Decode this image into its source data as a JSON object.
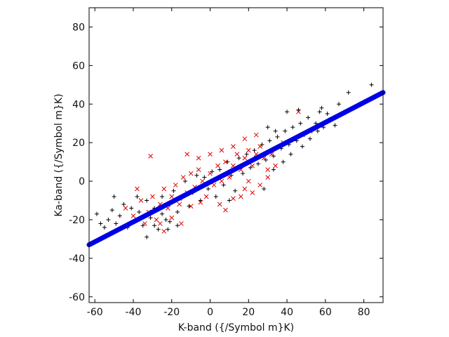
{
  "chart_data": {
    "type": "scatter",
    "title": "",
    "xlabel": "K-band ({/Symbol m}K)",
    "ylabel": "Ka-band ({/Symbol m}K)",
    "xlim": [
      -63,
      90
    ],
    "ylim": [
      -63,
      90
    ],
    "xticks": [
      -60,
      -40,
      -20,
      0,
      20,
      40,
      60,
      80
    ],
    "yticks": [
      -60,
      -40,
      -20,
      0,
      20,
      40,
      60,
      80
    ],
    "grid": false,
    "legend": "none",
    "series": [
      {
        "marker": "plus",
        "color": "#000000",
        "description_points": [
          [
            -59,
            -17
          ],
          [
            -57,
            -22
          ],
          [
            -55,
            -24
          ],
          [
            -53,
            -20
          ],
          [
            -51,
            -15
          ],
          [
            -49,
            -22
          ],
          [
            -47,
            -18
          ],
          [
            -45,
            -12
          ],
          [
            -43,
            -24
          ],
          [
            -41,
            -14
          ],
          [
            -39,
            -20
          ],
          [
            -37,
            -16
          ],
          [
            -35,
            -23
          ],
          [
            -33,
            -10
          ],
          [
            -31,
            -19
          ],
          [
            -29,
            -14
          ],
          [
            -27,
            -25
          ],
          [
            -25,
            -8
          ],
          [
            -23,
            -20
          ],
          [
            -21,
            -12
          ],
          [
            -19,
            -5
          ],
          [
            -17,
            -16
          ],
          [
            -15,
            -9
          ],
          [
            -13,
            0
          ],
          [
            -11,
            -13
          ],
          [
            -9,
            -6
          ],
          [
            -7,
            3
          ],
          [
            -5,
            -10
          ],
          [
            -3,
            2
          ],
          [
            -1,
            -4
          ],
          [
            1,
            5
          ],
          [
            3,
            -8
          ],
          [
            5,
            6
          ],
          [
            7,
            -2
          ],
          [
            9,
            10
          ],
          [
            11,
            3
          ],
          [
            13,
            -5
          ],
          [
            15,
            12
          ],
          [
            17,
            4
          ],
          [
            19,
            14
          ],
          [
            21,
            7
          ],
          [
            23,
            16
          ],
          [
            25,
            9
          ],
          [
            27,
            19
          ],
          [
            29,
            11
          ],
          [
            31,
            21
          ],
          [
            33,
            13
          ],
          [
            35,
            23
          ],
          [
            37,
            17
          ],
          [
            39,
            26
          ],
          [
            41,
            19
          ],
          [
            43,
            28
          ],
          [
            45,
            21
          ],
          [
            47,
            30
          ],
          [
            49,
            24
          ],
          [
            51,
            33
          ],
          [
            53,
            26
          ],
          [
            55,
            30
          ],
          [
            57,
            36
          ],
          [
            59,
            28
          ],
          [
            61,
            35
          ],
          [
            63,
            32
          ],
          [
            65,
            29
          ],
          [
            67,
            40
          ],
          [
            -33,
            -29
          ],
          [
            -29,
            -23
          ],
          [
            -25,
            -17
          ],
          [
            -21,
            -21
          ],
          [
            -17,
            -23
          ],
          [
            33,
            6
          ],
          [
            38,
            10
          ],
          [
            42,
            14
          ],
          [
            48,
            18
          ],
          [
            52,
            22
          ],
          [
            56,
            26
          ],
          [
            62,
            32
          ],
          [
            72,
            46
          ],
          [
            84,
            50
          ],
          [
            40,
            36
          ],
          [
            28,
            -4
          ],
          [
            -50,
            -8
          ],
          [
            -38,
            -8
          ],
          [
            30,
            28
          ],
          [
            34,
            26
          ],
          [
            46,
            37
          ],
          [
            58,
            38
          ],
          [
            10,
            -10
          ],
          [
            -22,
            -25
          ]
        ]
      },
      {
        "marker": "cross",
        "color": "#e00000",
        "description_points": [
          [
            -44,
            -14
          ],
          [
            -40,
            -18
          ],
          [
            -36,
            -10
          ],
          [
            -32,
            -16
          ],
          [
            -30,
            -8
          ],
          [
            -28,
            -20
          ],
          [
            -26,
            -12
          ],
          [
            -24,
            -4
          ],
          [
            -22,
            -14
          ],
          [
            -20,
            -8
          ],
          [
            -18,
            -2
          ],
          [
            -16,
            -12
          ],
          [
            -14,
            2
          ],
          [
            -12,
            -6
          ],
          [
            -10,
            4
          ],
          [
            -8,
            -3
          ],
          [
            -6,
            6
          ],
          [
            -4,
            0
          ],
          [
            -2,
            -8
          ],
          [
            0,
            4
          ],
          [
            2,
            -2
          ],
          [
            4,
            8
          ],
          [
            6,
            0
          ],
          [
            8,
            10
          ],
          [
            10,
            2
          ],
          [
            12,
            8
          ],
          [
            14,
            14
          ],
          [
            16,
            6
          ],
          [
            18,
            12
          ],
          [
            20,
            16
          ],
          [
            22,
            8
          ],
          [
            24,
            14
          ],
          [
            26,
            18
          ],
          [
            28,
            12
          ],
          [
            30,
            6
          ],
          [
            32,
            14
          ],
          [
            -31,
            13
          ],
          [
            -26,
            -22
          ],
          [
            -20,
            -19
          ],
          [
            -15,
            -22
          ],
          [
            -10,
            -13
          ],
          [
            -5,
            -11
          ],
          [
            5,
            -12
          ],
          [
            8,
            -15
          ],
          [
            12,
            -9
          ],
          [
            18,
            -4
          ],
          [
            22,
            -6
          ],
          [
            26,
            -2
          ],
          [
            30,
            2
          ],
          [
            34,
            8
          ],
          [
            -12,
            14
          ],
          [
            -6,
            12
          ],
          [
            0,
            14
          ],
          [
            6,
            16
          ],
          [
            12,
            18
          ],
          [
            18,
            22
          ],
          [
            24,
            24
          ],
          [
            46,
            36
          ],
          [
            38,
            20
          ],
          [
            -38,
            -4
          ],
          [
            -34,
            -22
          ],
          [
            -24,
            -26
          ],
          [
            16,
            -8
          ],
          [
            20,
            0
          ]
        ]
      },
      {
        "marker": "line",
        "color": "#0000e6",
        "points": [
          [
            -63,
            -33
          ],
          [
            90,
            46
          ]
        ]
      }
    ]
  }
}
